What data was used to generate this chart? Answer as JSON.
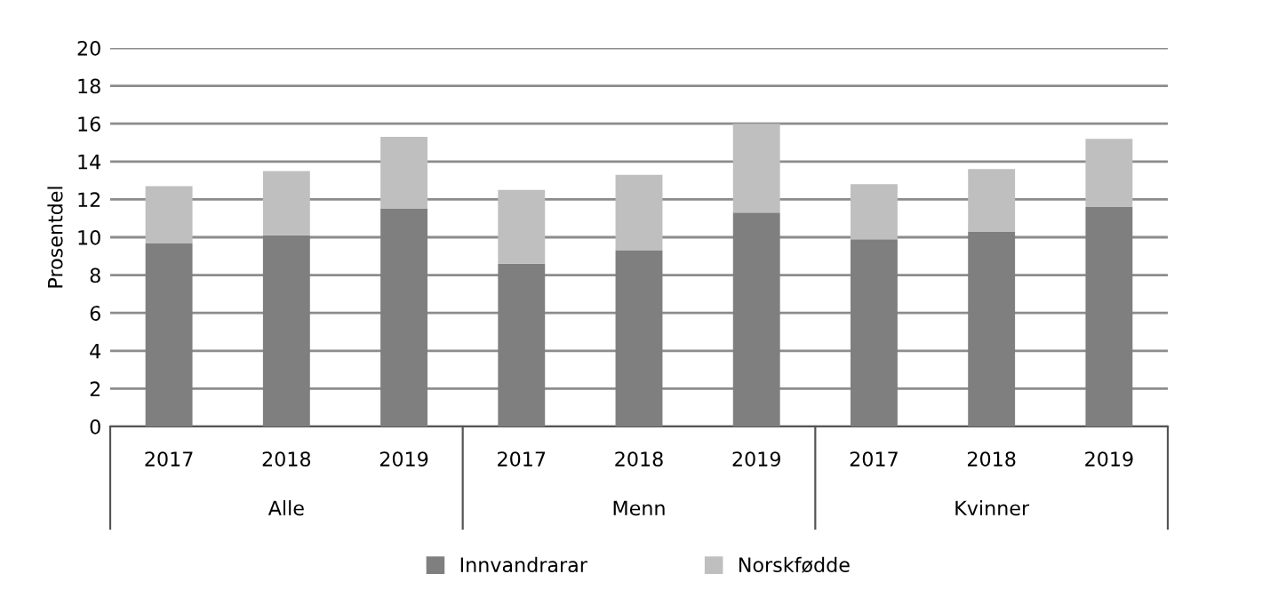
{
  "chart_data": {
    "type": "bar",
    "stacked": true,
    "ylabel": "Prosentdel",
    "categories": [
      "2017",
      "2018",
      "2019",
      "2017",
      "2018",
      "2019",
      "2017",
      "2018",
      "2019"
    ],
    "annotations": [
      "Alle",
      "Menn",
      "Kvinner"
    ],
    "series": [
      {
        "name": "Innvandrarar",
        "color": "#7f7f7f",
        "values": [
          9.7,
          10.1,
          11.5,
          8.6,
          9.3,
          11.3,
          9.9,
          10.3,
          11.6
        ]
      },
      {
        "name": "Norskfødde",
        "color": "#bfbfbf",
        "values": [
          3.0,
          3.4,
          3.8,
          3.9,
          4.0,
          4.7,
          2.9,
          3.3,
          3.6
        ]
      }
    ],
    "ylim": [
      0,
      20
    ],
    "yticks": [
      0,
      2,
      4,
      6,
      8,
      10,
      12,
      14,
      16,
      18,
      20
    ],
    "grid": "y",
    "legend": "bottom"
  }
}
